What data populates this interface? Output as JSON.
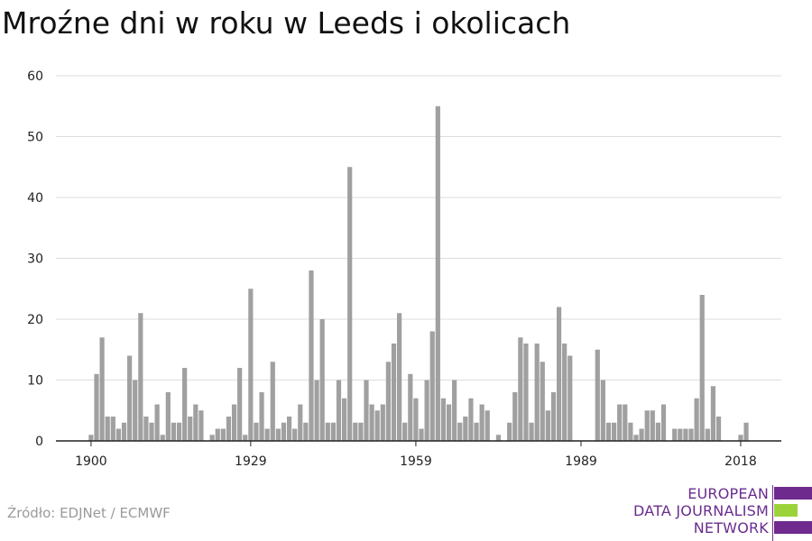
{
  "chart_data": {
    "type": "bar",
    "title": "Mroźne dni w roku w Leeds i okolicach",
    "x_start": 1900,
    "values": [
      1,
      11,
      17,
      4,
      4,
      2,
      3,
      14,
      10,
      21,
      4,
      3,
      6,
      1,
      8,
      3,
      3,
      12,
      4,
      6,
      5,
      0,
      1,
      2,
      2,
      4,
      6,
      12,
      1,
      25,
      3,
      8,
      2,
      13,
      2,
      3,
      4,
      2,
      6,
      3,
      28,
      10,
      20,
      3,
      3,
      10,
      7,
      45,
      3,
      3,
      10,
      6,
      5,
      6,
      13,
      16,
      21,
      3,
      11,
      7,
      2,
      10,
      18,
      55,
      7,
      6,
      10,
      3,
      4,
      7,
      3,
      6,
      5,
      0,
      1,
      0,
      3,
      8,
      17,
      16,
      3,
      16,
      13,
      5,
      8,
      22,
      16,
      14,
      0,
      0,
      0,
      0,
      15,
      10,
      3,
      3,
      6,
      6,
      3,
      1,
      2,
      5,
      5,
      3,
      6,
      0,
      2,
      2,
      2,
      2,
      7,
      24,
      2,
      9,
      4,
      0,
      0,
      0,
      1,
      3
    ],
    "x_tick_labels": [
      "1900",
      "1929",
      "1959",
      "1989",
      "2018"
    ],
    "x_tick_years": [
      1900,
      1929,
      1959,
      1989,
      2018
    ],
    "y_tick_labels": [
      "0",
      "10",
      "20",
      "30",
      "40",
      "50",
      "60"
    ],
    "ylim": [
      0,
      60
    ],
    "xlabel": "",
    "ylabel": "",
    "grid": true,
    "colors": {
      "bar": "#a0a0a0",
      "grid": "#dddddd",
      "axis": "#222222"
    }
  },
  "source": "Źródło: EDJNet / ECMWF",
  "logo": {
    "lines": [
      "EUROPEAN",
      "DATA JOURNALISM",
      "NETWORK"
    ],
    "colors": {
      "text": "#6a2c8f",
      "purple": "#6e2a8c",
      "green": "#9cd33a"
    }
  }
}
